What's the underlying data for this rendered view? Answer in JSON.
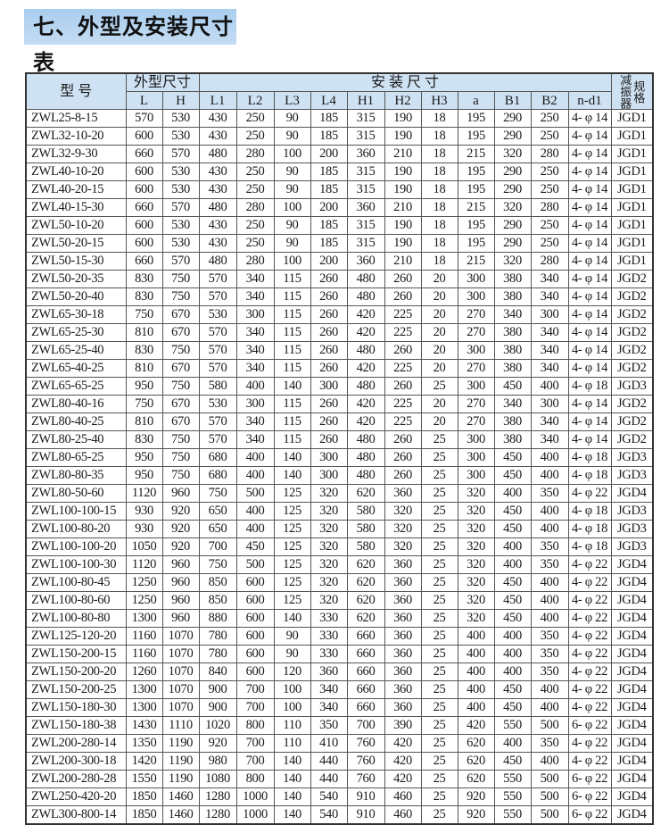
{
  "title": "七、外型及安装尺寸表",
  "header": {
    "model": "型  号",
    "outline": "外型尺寸",
    "install": "安    装    尺    寸",
    "spec_a": "减振器",
    "spec_b": "规格",
    "sub": [
      "L",
      "H",
      "L1",
      "L2",
      "L3",
      "L4",
      "H1",
      "H2",
      "H3",
      "a",
      "B1",
      "B2",
      "n-d1"
    ]
  },
  "rows": [
    [
      "ZWL25-8-15",
      "570",
      "530",
      "430",
      "250",
      "90",
      "185",
      "315",
      "190",
      "18",
      "195",
      "290",
      "250",
      "4- φ 14",
      "JGD1"
    ],
    [
      "ZWL32-10-20",
      "600",
      "530",
      "430",
      "250",
      "90",
      "185",
      "315",
      "190",
      "18",
      "195",
      "290",
      "250",
      "4- φ 14",
      "JGD1"
    ],
    [
      "ZWL32-9-30",
      "660",
      "570",
      "480",
      "280",
      "100",
      "200",
      "360",
      "210",
      "18",
      "215",
      "320",
      "280",
      "4- φ 14",
      "JGD1"
    ],
    [
      "ZWL40-10-20",
      "600",
      "530",
      "430",
      "250",
      "90",
      "185",
      "315",
      "190",
      "18",
      "195",
      "290",
      "250",
      "4- φ 14",
      "JGD1"
    ],
    [
      "ZWL40-20-15",
      "600",
      "530",
      "430",
      "250",
      "90",
      "185",
      "315",
      "190",
      "18",
      "195",
      "290",
      "250",
      "4- φ 14",
      "JGD1"
    ],
    [
      "ZWL40-15-30",
      "660",
      "570",
      "480",
      "280",
      "100",
      "200",
      "360",
      "210",
      "18",
      "215",
      "320",
      "280",
      "4- φ 14",
      "JGD1"
    ],
    [
      "ZWL50-10-20",
      "600",
      "530",
      "430",
      "250",
      "90",
      "185",
      "315",
      "190",
      "18",
      "195",
      "290",
      "250",
      "4- φ 14",
      "JGD1"
    ],
    [
      "ZWL50-20-15",
      "600",
      "530",
      "430",
      "250",
      "90",
      "185",
      "315",
      "190",
      "18",
      "195",
      "290",
      "250",
      "4- φ 14",
      "JGD1"
    ],
    [
      "ZWL50-15-30",
      "660",
      "570",
      "480",
      "280",
      "100",
      "200",
      "360",
      "210",
      "18",
      "215",
      "320",
      "280",
      "4- φ 14",
      "JGD1"
    ],
    [
      "ZWL50-20-35",
      "830",
      "750",
      "570",
      "340",
      "115",
      "260",
      "480",
      "260",
      "20",
      "300",
      "380",
      "340",
      "4- φ 14",
      "JGD2"
    ],
    [
      "ZWL50-20-40",
      "830",
      "750",
      "570",
      "340",
      "115",
      "260",
      "480",
      "260",
      "20",
      "300",
      "380",
      "340",
      "4- φ 14",
      "JGD2"
    ],
    [
      "ZWL65-30-18",
      "750",
      "670",
      "530",
      "300",
      "115",
      "260",
      "420",
      "225",
      "20",
      "270",
      "340",
      "300",
      "4- φ 14",
      "JGD2"
    ],
    [
      "ZWL65-25-30",
      "810",
      "670",
      "570",
      "340",
      "115",
      "260",
      "420",
      "225",
      "20",
      "270",
      "380",
      "340",
      "4- φ 14",
      "JGD2"
    ],
    [
      "ZWL65-25-40",
      "830",
      "750",
      "570",
      "340",
      "115",
      "260",
      "480",
      "260",
      "20",
      "300",
      "380",
      "340",
      "4- φ 14",
      "JGD2"
    ],
    [
      "ZWL65-40-25",
      "810",
      "670",
      "570",
      "340",
      "115",
      "260",
      "420",
      "225",
      "20",
      "270",
      "380",
      "340",
      "4- φ 14",
      "JGD2"
    ],
    [
      "ZWL65-65-25",
      "950",
      "750",
      "580",
      "400",
      "140",
      "300",
      "480",
      "260",
      "25",
      "300",
      "450",
      "400",
      "4- φ 18",
      "JGD3"
    ],
    [
      "ZWL80-40-16",
      "750",
      "670",
      "530",
      "300",
      "115",
      "260",
      "420",
      "225",
      "20",
      "270",
      "340",
      "300",
      "4- φ 14",
      "JGD2"
    ],
    [
      "ZWL80-40-25",
      "810",
      "670",
      "570",
      "340",
      "115",
      "260",
      "420",
      "225",
      "20",
      "270",
      "380",
      "340",
      "4- φ 14",
      "JGD2"
    ],
    [
      "ZWL80-25-40",
      "830",
      "750",
      "570",
      "340",
      "115",
      "260",
      "480",
      "260",
      "25",
      "300",
      "380",
      "340",
      "4- φ 14",
      "JGD2"
    ],
    [
      "ZWL80-65-25",
      "950",
      "750",
      "680",
      "400",
      "140",
      "300",
      "480",
      "260",
      "25",
      "300",
      "450",
      "400",
      "4- φ 18",
      "JGD3"
    ],
    [
      "ZWL80-80-35",
      "950",
      "750",
      "680",
      "400",
      "140",
      "300",
      "480",
      "260",
      "25",
      "300",
      "450",
      "400",
      "4- φ 18",
      "JGD3"
    ],
    [
      "ZWL80-50-60",
      "1120",
      "960",
      "750",
      "500",
      "125",
      "320",
      "620",
      "360",
      "25",
      "320",
      "400",
      "350",
      "4- φ 22",
      "JGD4"
    ],
    [
      "ZWL100-100-15",
      "930",
      "920",
      "650",
      "400",
      "125",
      "320",
      "580",
      "320",
      "25",
      "320",
      "450",
      "400",
      "4- φ 18",
      "JGD3"
    ],
    [
      "ZWL100-80-20",
      "930",
      "920",
      "650",
      "400",
      "125",
      "320",
      "580",
      "320",
      "25",
      "320",
      "450",
      "400",
      "4- φ 18",
      "JGD3"
    ],
    [
      "ZWL100-100-20",
      "1050",
      "920",
      "700",
      "450",
      "125",
      "320",
      "580",
      "320",
      "25",
      "320",
      "400",
      "350",
      "4- φ 18",
      "JGD3"
    ],
    [
      "ZWL100-100-30",
      "1120",
      "960",
      "750",
      "500",
      "125",
      "320",
      "620",
      "360",
      "25",
      "320",
      "400",
      "350",
      "4- φ 22",
      "JGD4"
    ],
    [
      "ZWL100-80-45",
      "1250",
      "960",
      "850",
      "600",
      "125",
      "320",
      "620",
      "360",
      "25",
      "320",
      "450",
      "400",
      "4- φ 22",
      "JGD4"
    ],
    [
      "ZWL100-80-60",
      "1250",
      "960",
      "850",
      "600",
      "125",
      "320",
      "620",
      "360",
      "25",
      "320",
      "450",
      "400",
      "4- φ 22",
      "JGD4"
    ],
    [
      "ZWL100-80-80",
      "1300",
      "960",
      "880",
      "600",
      "140",
      "330",
      "620",
      "360",
      "25",
      "320",
      "450",
      "400",
      "4- φ 22",
      "JGD4"
    ],
    [
      "ZWL125-120-20",
      "1160",
      "1070",
      "780",
      "600",
      "90",
      "330",
      "660",
      "360",
      "25",
      "400",
      "400",
      "350",
      "4- φ 22",
      "JGD4"
    ],
    [
      "ZWL150-200-15",
      "1160",
      "1070",
      "780",
      "600",
      "90",
      "330",
      "660",
      "360",
      "25",
      "400",
      "400",
      "350",
      "4- φ 22",
      "JGD4"
    ],
    [
      "ZWL150-200-20",
      "1260",
      "1070",
      "840",
      "600",
      "120",
      "360",
      "660",
      "360",
      "25",
      "400",
      "400",
      "350",
      "4- φ 22",
      "JGD4"
    ],
    [
      "ZWL150-200-25",
      "1300",
      "1070",
      "900",
      "700",
      "100",
      "340",
      "660",
      "360",
      "25",
      "400",
      "450",
      "400",
      "4- φ 22",
      "JGD4"
    ],
    [
      "ZWL150-180-30",
      "1300",
      "1070",
      "900",
      "700",
      "100",
      "340",
      "660",
      "360",
      "25",
      "400",
      "450",
      "400",
      "4- φ 22",
      "JGD4"
    ],
    [
      "ZWL150-180-38",
      "1430",
      "1110",
      "1020",
      "800",
      "110",
      "350",
      "700",
      "390",
      "25",
      "420",
      "550",
      "500",
      "6- φ 22",
      "JGD4"
    ],
    [
      "ZWL200-280-14",
      "1350",
      "1190",
      "920",
      "700",
      "110",
      "410",
      "760",
      "420",
      "25",
      "620",
      "400",
      "350",
      "4- φ 22",
      "JGD4"
    ],
    [
      "ZWL200-300-18",
      "1420",
      "1190",
      "980",
      "700",
      "140",
      "440",
      "760",
      "420",
      "25",
      "620",
      "450",
      "400",
      "4- φ 22",
      "JGD4"
    ],
    [
      "ZWL200-280-28",
      "1550",
      "1190",
      "1080",
      "800",
      "140",
      "440",
      "760",
      "420",
      "25",
      "620",
      "550",
      "500",
      "6- φ 22",
      "JGD4"
    ],
    [
      "ZWL250-420-20",
      "1850",
      "1460",
      "1280",
      "1000",
      "140",
      "540",
      "910",
      "460",
      "25",
      "920",
      "550",
      "500",
      "6- φ 22",
      "JGD4"
    ],
    [
      "ZWL300-800-14",
      "1850",
      "1460",
      "1280",
      "1000",
      "140",
      "540",
      "910",
      "460",
      "25",
      "920",
      "550",
      "500",
      "6- φ 22",
      "JGD4"
    ]
  ]
}
